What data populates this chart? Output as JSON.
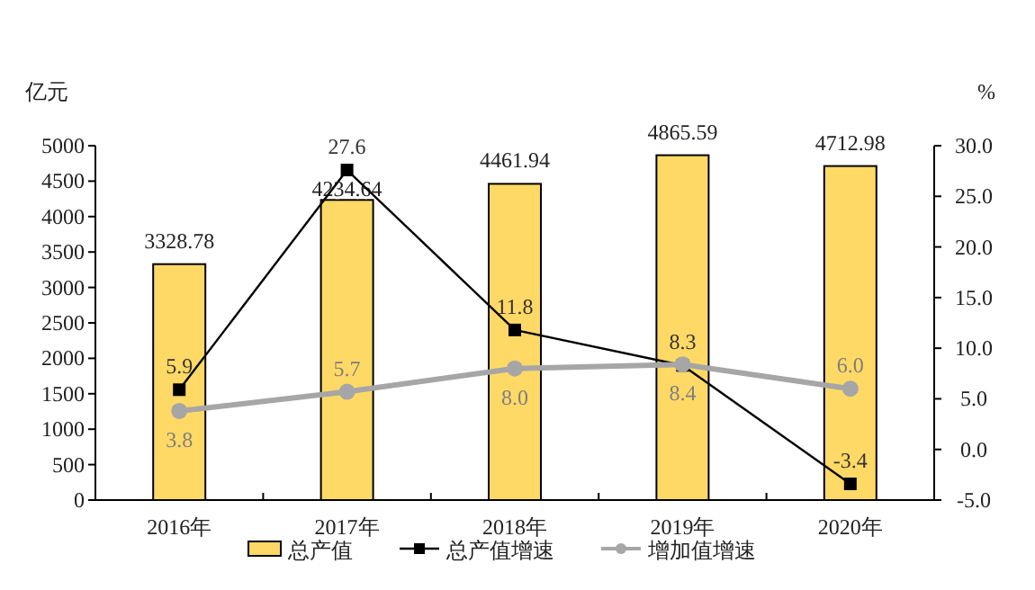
{
  "chart_data": {
    "type": "bar",
    "ylabel": "亿元",
    "y2label": "%",
    "categories": [
      "2016年",
      "2017年",
      "2018年",
      "2019年",
      "2020年"
    ],
    "series": [
      {
        "name": "总产值",
        "color": "#ffd966",
        "values": [
          3328.78,
          4234.64,
          4461.94,
          4865.59,
          4712.98
        ],
        "value_labels": [
          "3328.78",
          "4234.64",
          "4461.94",
          "4865.59",
          "4712.98"
        ]
      },
      {
        "name": "总产值增速",
        "type": "line",
        "axis": "y2",
        "color": "#000000",
        "marker": "square",
        "values": [
          5.9,
          27.6,
          11.8,
          8.3,
          -3.4
        ],
        "value_labels": [
          "5.9",
          "27.6",
          "11.8",
          "8.3",
          "-3.4"
        ]
      },
      {
        "name": "增加值增速",
        "type": "line",
        "axis": "y2",
        "color": "#a6a6a6",
        "marker": "circle",
        "values": [
          3.8,
          5.7,
          8.0,
          8.4,
          6.0
        ],
        "value_labels": [
          "3.8",
          "5.7",
          "8.0",
          "8.4",
          "6.0"
        ]
      }
    ],
    "ylim": [
      0,
      5000
    ],
    "yticks": [
      0,
      500,
      1000,
      1500,
      2000,
      2500,
      3000,
      3500,
      4000,
      4500,
      5000
    ],
    "y2lim": [
      -5,
      30
    ],
    "y2ticks": [
      {
        "value": -5,
        "label": "-5.0"
      },
      {
        "value": 0,
        "label": "0.0"
      },
      {
        "value": 5,
        "label": "5.0"
      },
      {
        "value": 10,
        "label": "10.0"
      },
      {
        "value": 15,
        "label": "15.0"
      },
      {
        "value": 20,
        "label": "20.0"
      },
      {
        "value": 25,
        "label": "25.0"
      },
      {
        "value": 30,
        "label": "30.0"
      }
    ],
    "grid": false,
    "legend": "bottom"
  }
}
